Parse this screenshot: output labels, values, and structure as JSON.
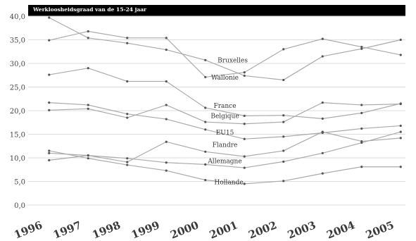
{
  "chart_data": {
    "type": "line",
    "title": "Werkloosheidsgraad van de 15-24 jaar",
    "xlabel": "",
    "ylabel": "",
    "ylim": [
      0,
      40
    ],
    "yticks": [
      "0,0",
      "5,0",
      "10,0",
      "15,0",
      "20,0",
      "25,0",
      "30,0",
      "35,0",
      "40,0"
    ],
    "year_labels": [
      "1996",
      "1997",
      "1998",
      "1999",
      "2000",
      "2001",
      "2002",
      "2003",
      "2004",
      "2005"
    ],
    "points_x": [
      1996.5,
      1997.5,
      1998.5,
      1999.5,
      2000.5,
      2001.5,
      2002.5,
      2003.5,
      2004.5,
      2005.5
    ],
    "grid": "horizontal",
    "legend": "none",
    "line_color": "#aaaaaa",
    "marker_color": "#555555",
    "series": [
      {
        "name": "Bruxelles",
        "values": [
          39.7,
          35.4,
          34.3,
          32.9,
          30.7,
          27.4,
          26.5,
          31.5,
          33.1,
          35.0
        ]
      },
      {
        "name": "Wallonie",
        "values": [
          34.9,
          36.8,
          35.4,
          35.4,
          27.1,
          28.1,
          33.0,
          35.2,
          33.5,
          31.8
        ]
      },
      {
        "name": "France",
        "values": [
          27.6,
          29.0,
          26.2,
          26.2,
          20.6,
          18.9,
          19.0,
          18.3,
          19.5,
          21.5
        ]
      },
      {
        "name": "Belgique",
        "values": [
          21.7,
          21.2,
          19.3,
          18.2,
          16.0,
          14.0,
          14.5,
          15.3,
          16.2,
          16.8
        ]
      },
      {
        "name": "EU15",
        "values": [
          20.1,
          20.4,
          18.5,
          21.2,
          17.6,
          17.2,
          17.6,
          21.7,
          21.2,
          21.4
        ]
      },
      {
        "name": "Flandre",
        "values": [
          11.0,
          10.5,
          9.9,
          9.0,
          8.6,
          7.9,
          9.2,
          11.0,
          13.2,
          15.5
        ]
      },
      {
        "name": "Allemagne",
        "values": [
          9.5,
          10.5,
          9.1,
          13.4,
          11.3,
          10.3,
          11.5,
          15.5,
          13.5,
          14.2
        ]
      },
      {
        "name": "Hollande",
        "values": [
          11.5,
          9.9,
          8.5,
          7.3,
          5.3,
          4.5,
          5.1,
          6.7,
          8.1,
          8.1
        ]
      }
    ]
  }
}
